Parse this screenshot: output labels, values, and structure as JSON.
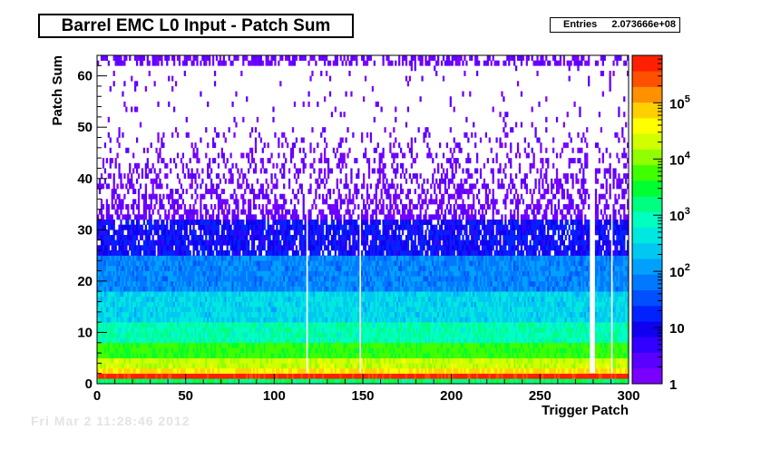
{
  "chart_data": {
    "type": "heatmap",
    "title": "Barrel EMC L0 Input - Patch Sum",
    "xlabel": "Trigger Patch",
    "ylabel": "Patch Sum",
    "xlim": [
      0,
      300
    ],
    "ylim": [
      0,
      64
    ],
    "x_ticks": [
      "0",
      "50",
      "100",
      "150",
      "200",
      "250",
      "300"
    ],
    "y_ticks": [
      "0",
      "10",
      "20",
      "30",
      "40",
      "50",
      "60"
    ],
    "z_scale": "log",
    "zlim": [
      1,
      700000
    ],
    "z_ticks": [
      {
        "value": 1,
        "base": "1",
        "exp": ""
      },
      {
        "value": 10,
        "base": "10",
        "exp": ""
      },
      {
        "value": 100,
        "base": "10",
        "exp": "2"
      },
      {
        "value": 1000,
        "base": "10",
        "exp": "3"
      },
      {
        "value": 10000,
        "base": "10",
        "exp": "4"
      },
      {
        "value": 100000,
        "base": "10",
        "exp": "5"
      }
    ],
    "grid": false,
    "stats": {
      "label": "Entries",
      "value": "2.073666e+08"
    },
    "palette": [
      "#7a00ff",
      "#5a00ff",
      "#3200ff",
      "#1000f0",
      "#0022ff",
      "#0050ff",
      "#0078ff",
      "#00a0ff",
      "#00c8f0",
      "#00e8e0",
      "#00ffc0",
      "#00ff80",
      "#00ff30",
      "#40ff00",
      "#90ff00",
      "#d0ff00",
      "#ffff00",
      "#ffd000",
      "#ff9000",
      "#ff5000",
      "#ff2000"
    ],
    "rows": [
      {
        "y_range": [
          0,
          1
        ],
        "counts": 2000
      },
      {
        "y_range": [
          1,
          2
        ],
        "counts": 500000
      },
      {
        "y_range": [
          2,
          3
        ],
        "counts": 60000
      },
      {
        "y_range": [
          3,
          5
        ],
        "counts": 20000
      },
      {
        "y_range": [
          5,
          8
        ],
        "counts": 5000
      },
      {
        "y_range": [
          8,
          12
        ],
        "counts": 1000
      },
      {
        "y_range": [
          12,
          18
        ],
        "counts": 300
      },
      {
        "y_range": [
          18,
          25
        ],
        "counts": 80
      },
      {
        "y_range": [
          25,
          32
        ],
        "counts": 12
      },
      {
        "y_range": [
          32,
          45
        ],
        "counts": 2
      },
      {
        "y_range": [
          45,
          62
        ],
        "counts": 1
      },
      {
        "y_range": [
          62,
          64
        ],
        "counts": 1
      }
    ],
    "empty_columns": [
      118,
      148,
      278,
      279,
      280,
      290
    ]
  },
  "footer": "Fri Mar  2 11:28:46 2012"
}
